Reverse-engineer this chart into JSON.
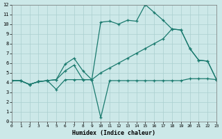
{
  "xlabel": "Humidex (Indice chaleur)",
  "bg_color": "#cce8e8",
  "line_color": "#1a7a6e",
  "grid_color": "#aacfcf",
  "xlim": [
    0,
    23
  ],
  "ylim": [
    0,
    12
  ],
  "xticks": [
    0,
    1,
    2,
    3,
    4,
    5,
    6,
    7,
    8,
    9,
    10,
    11,
    12,
    13,
    14,
    15,
    16,
    17,
    18,
    19,
    20,
    21,
    22,
    23
  ],
  "yticks": [
    0,
    1,
    2,
    3,
    4,
    5,
    6,
    7,
    8,
    9,
    10,
    11,
    12
  ],
  "lines": [
    {
      "x": [
        0,
        1,
        2,
        3,
        4,
        5,
        6,
        7,
        8,
        9,
        10,
        11,
        12,
        13,
        14,
        15,
        16,
        17,
        18,
        19,
        20,
        21,
        22,
        23
      ],
      "y": [
        4.2,
        4.2,
        3.8,
        4.1,
        4.2,
        4.3,
        5.9,
        6.5,
        5.2,
        4.3,
        10.2,
        10.3,
        10.0,
        10.4,
        10.3,
        12.0,
        11.2,
        10.4,
        9.5,
        9.4,
        7.5,
        6.3,
        6.2,
        4.3
      ]
    },
    {
      "x": [
        0,
        1,
        2,
        3,
        4,
        5,
        6,
        7,
        8,
        9,
        10,
        11,
        12,
        13,
        14,
        15,
        16,
        17,
        18,
        19,
        20,
        21,
        22,
        23
      ],
      "y": [
        4.2,
        4.2,
        3.8,
        4.1,
        4.2,
        3.3,
        4.3,
        4.3,
        4.3,
        4.3,
        0.4,
        4.2,
        4.2,
        4.2,
        4.2,
        4.2,
        4.2,
        4.2,
        4.2,
        4.2,
        4.4,
        4.4,
        4.4,
        4.3
      ]
    },
    {
      "x": [
        0,
        1,
        2,
        3,
        4,
        5,
        6,
        7,
        8,
        9,
        10,
        11,
        12,
        13,
        14,
        15,
        16,
        17,
        18,
        19,
        20,
        21,
        22,
        23
      ],
      "y": [
        4.2,
        4.2,
        3.8,
        4.1,
        4.2,
        4.3,
        5.2,
        5.8,
        4.3,
        4.3,
        5.0,
        5.5,
        6.0,
        6.5,
        7.0,
        7.5,
        8.0,
        8.5,
        9.5,
        9.4,
        7.5,
        6.3,
        6.2,
        4.3
      ]
    }
  ]
}
